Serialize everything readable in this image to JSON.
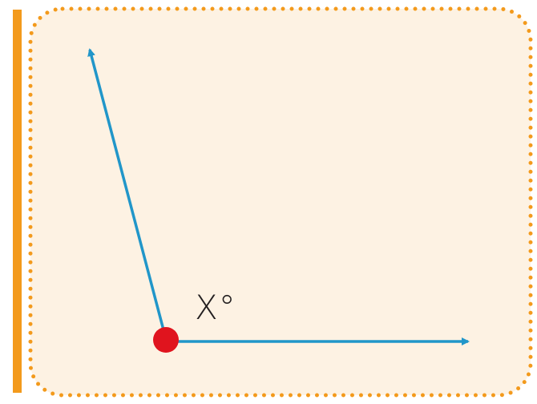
{
  "angle_label": "X°",
  "colors": {
    "panel_fill": "#fdf2e3",
    "panel_border": "#f39a1c",
    "side_bar": "#f39a1c",
    "ray": "#2196c9",
    "vertex": "#e0141e",
    "label_text": "#231f20"
  }
}
